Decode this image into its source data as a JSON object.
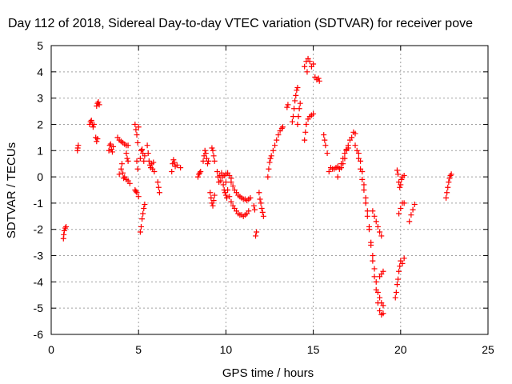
{
  "chart_data": {
    "type": "scatter",
    "title": "Day 112 of 2018, Sidereal Day-to-day VTEC variation (SDTVAR) for receiver pove",
    "xlabel": "GPS time / hours",
    "ylabel": "SDTVAR / TECUs",
    "xlim": [
      0,
      25
    ],
    "ylim": [
      -6,
      5
    ],
    "x_ticks": [
      "0",
      "5",
      "10",
      "15",
      "20",
      "25"
    ],
    "y_ticks": [
      "-6",
      "-5",
      "-4",
      "-3",
      "-2",
      "-1",
      "0",
      "1",
      "2",
      "3",
      "4",
      "5"
    ],
    "grid": true,
    "marker": "+",
    "color": "#ff0000",
    "series": [
      {
        "name": "SDTVAR",
        "points": [
          [
            0.7,
            -2.35
          ],
          [
            0.72,
            -2.2
          ],
          [
            0.75,
            -2.05
          ],
          [
            0.8,
            -1.95
          ],
          [
            0.85,
            -1.9
          ],
          [
            1.5,
            1.0
          ],
          [
            1.52,
            1.1
          ],
          [
            1.55,
            1.2
          ],
          [
            2.2,
            2.0
          ],
          [
            2.25,
            2.1
          ],
          [
            2.3,
            2.15
          ],
          [
            2.35,
            2.0
          ],
          [
            2.4,
            1.9
          ],
          [
            2.45,
            2.0
          ],
          [
            2.55,
            1.5
          ],
          [
            2.6,
            1.35
          ],
          [
            2.65,
            1.45
          ],
          [
            2.6,
            2.7
          ],
          [
            2.65,
            2.8
          ],
          [
            2.7,
            2.85
          ],
          [
            2.75,
            2.75
          ],
          [
            3.3,
            1.0
          ],
          [
            3.35,
            1.2
          ],
          [
            3.4,
            1.25
          ],
          [
            3.45,
            1.05
          ],
          [
            3.5,
            0.95
          ],
          [
            3.55,
            1.15
          ],
          [
            3.8,
            1.5
          ],
          [
            3.9,
            1.4
          ],
          [
            4.0,
            1.35
          ],
          [
            4.1,
            1.3
          ],
          [
            4.2,
            1.25
          ],
          [
            4.3,
            1.2
          ],
          [
            4.4,
            1.2
          ],
          [
            3.9,
            0.1
          ],
          [
            4.0,
            0.3
          ],
          [
            4.05,
            0.5
          ],
          [
            4.1,
            0.15
          ],
          [
            4.15,
            -0.05
          ],
          [
            4.2,
            0.0
          ],
          [
            4.3,
            -0.1
          ],
          [
            4.4,
            -0.15
          ],
          [
            4.5,
            -0.25
          ],
          [
            4.3,
            0.9
          ],
          [
            4.35,
            0.7
          ],
          [
            4.4,
            0.6
          ],
          [
            4.8,
            2.0
          ],
          [
            4.85,
            1.8
          ],
          [
            4.9,
            1.6
          ],
          [
            4.95,
            1.3
          ],
          [
            5.0,
            1.9
          ],
          [
            4.9,
            0.6
          ],
          [
            4.95,
            0.3
          ],
          [
            4.8,
            -0.5
          ],
          [
            4.85,
            -0.55
          ],
          [
            4.9,
            -0.6
          ],
          [
            5.0,
            -0.75
          ],
          [
            5.1,
            -2.1
          ],
          [
            5.15,
            -1.9
          ],
          [
            5.2,
            -1.6
          ],
          [
            5.25,
            -1.4
          ],
          [
            5.3,
            -1.2
          ],
          [
            5.35,
            -1.05
          ],
          [
            5.1,
            0.7
          ],
          [
            5.15,
            1.0
          ],
          [
            5.2,
            1.05
          ],
          [
            5.25,
            0.9
          ],
          [
            5.3,
            0.6
          ],
          [
            5.35,
            0.8
          ],
          [
            5.5,
            1.2
          ],
          [
            5.55,
            0.9
          ],
          [
            5.6,
            0.6
          ],
          [
            5.65,
            0.45
          ],
          [
            5.7,
            0.35
          ],
          [
            5.75,
            0.5
          ],
          [
            5.8,
            0.3
          ],
          [
            5.85,
            0.55
          ],
          [
            5.9,
            0.2
          ],
          [
            6.1,
            -0.2
          ],
          [
            6.15,
            -0.4
          ],
          [
            6.2,
            -0.6
          ],
          [
            6.9,
            0.2
          ],
          [
            6.95,
            0.5
          ],
          [
            7.0,
            0.65
          ],
          [
            7.05,
            0.55
          ],
          [
            7.1,
            0.4
          ],
          [
            7.2,
            0.45
          ],
          [
            7.4,
            0.35
          ],
          [
            8.4,
            0.0
          ],
          [
            8.45,
            0.1
          ],
          [
            8.5,
            0.15
          ],
          [
            8.55,
            0.2
          ],
          [
            8.7,
            0.6
          ],
          [
            8.75,
            0.8
          ],
          [
            8.8,
            1.0
          ],
          [
            8.85,
            0.9
          ],
          [
            8.9,
            0.7
          ],
          [
            8.95,
            0.5
          ],
          [
            9.0,
            0.6
          ],
          [
            9.2,
            1.1
          ],
          [
            9.25,
            1.0
          ],
          [
            9.3,
            0.8
          ],
          [
            9.35,
            0.6
          ],
          [
            9.1,
            -0.6
          ],
          [
            9.15,
            -0.8
          ],
          [
            9.2,
            -1.0
          ],
          [
            9.25,
            -1.1
          ],
          [
            9.3,
            -0.9
          ],
          [
            9.35,
            -0.7
          ],
          [
            9.5,
            0.2
          ],
          [
            9.55,
            0.0
          ],
          [
            9.6,
            -0.2
          ],
          [
            9.65,
            0.05
          ],
          [
            9.7,
            -0.15
          ],
          [
            9.75,
            0.15
          ],
          [
            9.8,
            0.0
          ],
          [
            9.85,
            -0.3
          ],
          [
            9.9,
            -0.5
          ],
          [
            9.95,
            -0.6
          ],
          [
            10.0,
            -0.7
          ],
          [
            10.05,
            -0.8
          ],
          [
            9.9,
            0.05
          ],
          [
            10.0,
            0.1
          ],
          [
            10.1,
            0.15
          ],
          [
            10.2,
            0.05
          ],
          [
            10.3,
            -0.05
          ],
          [
            10.0,
            -0.2
          ],
          [
            10.1,
            -0.5
          ],
          [
            10.2,
            -0.75
          ],
          [
            10.3,
            -0.95
          ],
          [
            10.4,
            -1.1
          ],
          [
            10.5,
            -1.2
          ],
          [
            10.6,
            -1.3
          ],
          [
            10.7,
            -1.4
          ],
          [
            10.8,
            -1.45
          ],
          [
            10.9,
            -1.45
          ],
          [
            11.0,
            -1.5
          ],
          [
            11.1,
            -1.45
          ],
          [
            11.2,
            -1.4
          ],
          [
            11.3,
            -1.3
          ],
          [
            10.3,
            -0.2
          ],
          [
            10.4,
            -0.35
          ],
          [
            10.5,
            -0.5
          ],
          [
            10.6,
            -0.6
          ],
          [
            10.7,
            -0.7
          ],
          [
            10.8,
            -0.75
          ],
          [
            10.9,
            -0.8
          ],
          [
            11.0,
            -0.85
          ],
          [
            11.1,
            -0.85
          ],
          [
            11.2,
            -0.9
          ],
          [
            11.3,
            -0.85
          ],
          [
            11.4,
            -0.8
          ],
          [
            11.6,
            -1.1
          ],
          [
            11.65,
            -1.25
          ],
          [
            11.7,
            -2.25
          ],
          [
            11.75,
            -2.1
          ],
          [
            11.9,
            -0.6
          ],
          [
            11.95,
            -0.85
          ],
          [
            12.0,
            -1.0
          ],
          [
            12.05,
            -1.2
          ],
          [
            12.1,
            -1.35
          ],
          [
            12.15,
            -1.5
          ],
          [
            12.4,
            0.0
          ],
          [
            12.45,
            0.3
          ],
          [
            12.5,
            0.55
          ],
          [
            12.55,
            0.7
          ],
          [
            12.6,
            0.8
          ],
          [
            12.7,
            1.0
          ],
          [
            12.8,
            1.2
          ],
          [
            12.9,
            1.4
          ],
          [
            13.0,
            1.6
          ],
          [
            13.1,
            1.75
          ],
          [
            13.2,
            1.85
          ],
          [
            13.25,
            1.9
          ],
          [
            13.5,
            2.65
          ],
          [
            13.55,
            2.75
          ],
          [
            13.8,
            2.1
          ],
          [
            13.85,
            2.3
          ],
          [
            13.9,
            2.6
          ],
          [
            13.95,
            2.9
          ],
          [
            14.0,
            3.1
          ],
          [
            14.05,
            3.3
          ],
          [
            14.1,
            3.4
          ],
          [
            14.1,
            2.0
          ],
          [
            14.15,
            2.3
          ],
          [
            14.2,
            2.6
          ],
          [
            14.25,
            2.8
          ],
          [
            14.5,
            4.2
          ],
          [
            14.6,
            4.4
          ],
          [
            14.7,
            4.5
          ],
          [
            14.8,
            4.4
          ],
          [
            14.9,
            4.2
          ],
          [
            15.0,
            4.3
          ],
          [
            14.65,
            4.0
          ],
          [
            14.5,
            1.4
          ],
          [
            14.55,
            1.7
          ],
          [
            14.6,
            2.0
          ],
          [
            14.7,
            2.2
          ],
          [
            14.8,
            2.3
          ],
          [
            14.9,
            2.35
          ],
          [
            15.0,
            2.4
          ],
          [
            15.1,
            3.8
          ],
          [
            15.2,
            3.7
          ],
          [
            15.3,
            3.75
          ],
          [
            15.35,
            3.65
          ],
          [
            15.6,
            1.6
          ],
          [
            15.65,
            1.4
          ],
          [
            15.7,
            1.2
          ],
          [
            15.8,
            0.9
          ],
          [
            15.9,
            0.2
          ],
          [
            16.0,
            0.35
          ],
          [
            16.1,
            0.3
          ],
          [
            16.2,
            0.3
          ],
          [
            16.3,
            0.35
          ],
          [
            16.4,
            0.4
          ],
          [
            16.5,
            0.3
          ],
          [
            16.6,
            0.35
          ],
          [
            16.7,
            0.5
          ],
          [
            16.8,
            0.7
          ],
          [
            16.9,
            1.0
          ],
          [
            17.0,
            1.2
          ],
          [
            17.1,
            1.4
          ],
          [
            17.2,
            1.5
          ],
          [
            17.3,
            1.7
          ],
          [
            17.4,
            1.65
          ],
          [
            16.4,
            0.0
          ],
          [
            16.5,
            0.3
          ],
          [
            16.6,
            0.5
          ],
          [
            16.7,
            0.7
          ],
          [
            16.8,
            0.9
          ],
          [
            16.9,
            1.05
          ],
          [
            17.0,
            1.1
          ],
          [
            17.4,
            1.2
          ],
          [
            17.5,
            1.0
          ],
          [
            17.6,
            0.7
          ],
          [
            17.7,
            0.3
          ],
          [
            17.8,
            -0.1
          ],
          [
            17.9,
            -0.5
          ],
          [
            18.0,
            -1.0
          ],
          [
            18.1,
            -1.5
          ],
          [
            18.2,
            -2.0
          ],
          [
            18.3,
            -2.5
          ],
          [
            18.4,
            -3.0
          ],
          [
            18.5,
            -3.5
          ],
          [
            18.6,
            -4.0
          ],
          [
            18.7,
            -4.4
          ],
          [
            18.8,
            -4.6
          ],
          [
            18.9,
            -4.8
          ],
          [
            19.0,
            -4.9
          ],
          [
            17.6,
            0.9
          ],
          [
            17.7,
            0.6
          ],
          [
            17.8,
            0.2
          ],
          [
            17.9,
            -0.3
          ],
          [
            18.0,
            -0.8
          ],
          [
            18.1,
            -1.3
          ],
          [
            18.2,
            -1.9
          ],
          [
            18.3,
            -2.6
          ],
          [
            18.4,
            -3.2
          ],
          [
            18.5,
            -3.8
          ],
          [
            18.6,
            -4.3
          ],
          [
            18.7,
            -4.8
          ],
          [
            18.8,
            -5.1
          ],
          [
            18.9,
            -5.25
          ],
          [
            19.0,
            -5.2
          ],
          [
            18.4,
            -1.3
          ],
          [
            18.5,
            -1.5
          ],
          [
            18.6,
            -1.7
          ],
          [
            18.7,
            -1.9
          ],
          [
            18.8,
            -2.1
          ],
          [
            18.9,
            -2.25
          ],
          [
            18.8,
            -3.8
          ],
          [
            18.9,
            -3.7
          ],
          [
            19.0,
            -3.6
          ],
          [
            19.7,
            -4.6
          ],
          [
            19.75,
            -4.4
          ],
          [
            19.8,
            -4.1
          ],
          [
            19.85,
            -3.9
          ],
          [
            19.9,
            -3.6
          ],
          [
            19.95,
            -3.4
          ],
          [
            20.0,
            -3.2
          ],
          [
            20.1,
            -3.3
          ],
          [
            20.2,
            -3.1
          ],
          [
            19.8,
            0.25
          ],
          [
            19.85,
            0.1
          ],
          [
            19.9,
            -0.2
          ],
          [
            19.95,
            -0.4
          ],
          [
            19.9,
            -1.4
          ],
          [
            20.0,
            -1.2
          ],
          [
            20.1,
            -1.0
          ],
          [
            20.2,
            -1.0
          ],
          [
            20.0,
            -0.3
          ],
          [
            20.05,
            -0.1
          ],
          [
            20.1,
            0.0
          ],
          [
            20.2,
            0.05
          ],
          [
            20.5,
            -1.7
          ],
          [
            20.6,
            -1.45
          ],
          [
            20.7,
            -1.25
          ],
          [
            20.8,
            -1.05
          ],
          [
            22.6,
            -0.8
          ],
          [
            22.65,
            -0.6
          ],
          [
            22.7,
            -0.4
          ],
          [
            22.75,
            -0.2
          ],
          [
            22.8,
            -0.05
          ],
          [
            22.85,
            0.05
          ],
          [
            22.9,
            0.1
          ]
        ]
      }
    ]
  }
}
